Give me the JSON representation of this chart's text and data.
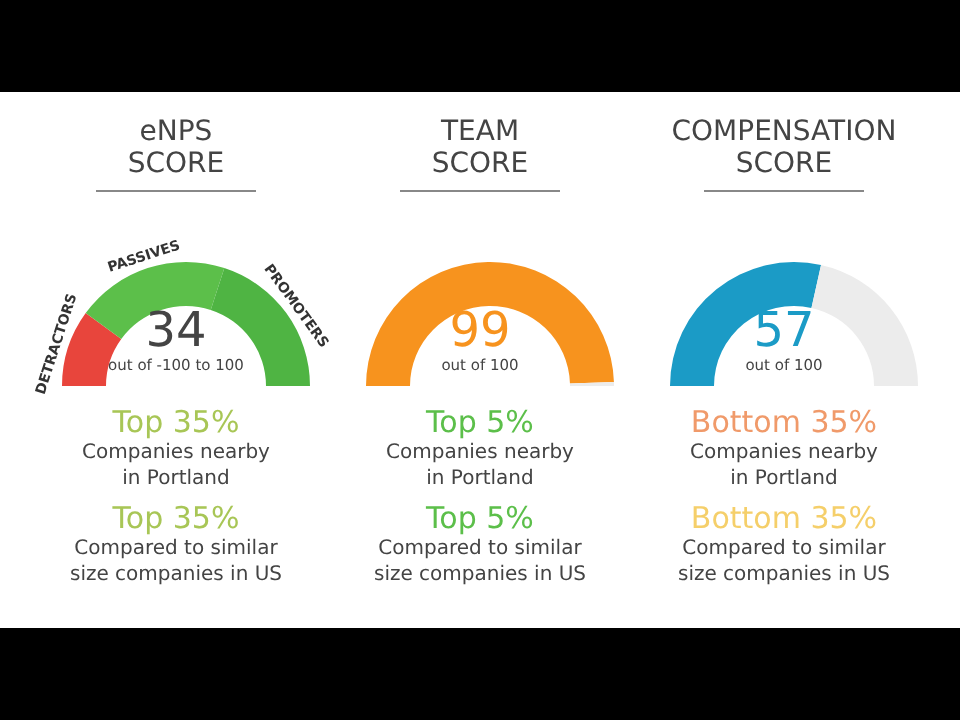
{
  "chart_data": [
    {
      "type": "donut",
      "title": "eNPS SCORE",
      "categories": [
        "DETRACTORS",
        "PASSIVES",
        "PROMOTERS"
      ],
      "values": [
        20,
        40,
        40
      ],
      "colors": [
        "#e8453c",
        "#5cbf4a",
        "#4fb443"
      ],
      "legend": false,
      "annotations": [
        "34",
        "out of -100 to 100",
        "Top 35%",
        "Companies nearby in Portland",
        "Top 35%",
        "Compared to similar size companies in US"
      ]
    },
    {
      "type": "donut",
      "title": "TEAM SCORE",
      "categories": [
        null,
        null
      ],
      "values": [
        99,
        1
      ],
      "colors": [
        "#f7931e",
        "#ececec"
      ],
      "legend": false,
      "annotations": [
        "99",
        "out of 100",
        "Top 5%",
        "Companies nearby in Portland",
        "Top 5%",
        "Compared to similar size companies in US"
      ]
    },
    {
      "type": "donut",
      "title": "COMPENSATION SCORE",
      "categories": [
        null,
        null
      ],
      "values": [
        57,
        43
      ],
      "colors": [
        "#1b9bc6",
        "#ececec"
      ],
      "legend": false,
      "annotations": [
        "57",
        "out of 100",
        "Bottom 35%",
        "Companies nearby in Portland",
        "Bottom 35%",
        "Compared to similar size companies in US"
      ]
    }
  ]
}
